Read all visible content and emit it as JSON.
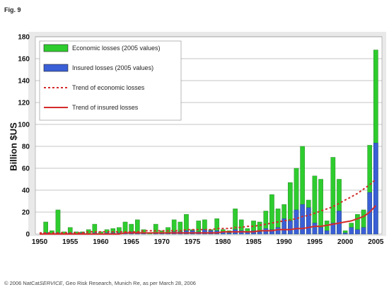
{
  "figure": {
    "label": "Fig. 9",
    "credit_prefix": "© 2006 NatCat",
    "credit_service": "SERVICE",
    "credit_suffix": ", Geo Risk Research, Munich Re, as per March 28, 2006"
  },
  "colors": {
    "economic": "#2ecc2e",
    "insured": "#3a5fd6",
    "trend_economic": "#d42a2a",
    "trend_insured": "#d42a2a",
    "plot_bg": "#ffffff",
    "outer_bg": "#e9e9e9"
  },
  "chart_data": {
    "type": "bar",
    "title": "",
    "xlabel": "",
    "ylabel": "Billion $US",
    "ylim": [
      0,
      180
    ],
    "yticks": [
      0,
      20,
      40,
      60,
      80,
      100,
      120,
      140,
      160,
      180
    ],
    "xticks": [
      1950,
      1955,
      1960,
      1965,
      1970,
      1975,
      1980,
      1985,
      1990,
      1995,
      2000,
      2005
    ],
    "grid": true,
    "legend_position": "top-left",
    "x": [
      1950,
      1951,
      1952,
      1953,
      1954,
      1955,
      1956,
      1957,
      1958,
      1959,
      1960,
      1961,
      1962,
      1963,
      1964,
      1965,
      1966,
      1967,
      1968,
      1969,
      1970,
      1971,
      1972,
      1973,
      1974,
      1975,
      1976,
      1977,
      1978,
      1979,
      1980,
      1981,
      1982,
      1983,
      1984,
      1985,
      1986,
      1987,
      1988,
      1989,
      1990,
      1991,
      1992,
      1993,
      1994,
      1995,
      1996,
      1997,
      1998,
      1999,
      2000,
      2001,
      2002,
      2003,
      2004,
      2005
    ],
    "series": [
      {
        "name": "Economic losses (2005 values)",
        "values": [
          0,
          11,
          3,
          22,
          2,
          6,
          2,
          2,
          4,
          9,
          2,
          4,
          5,
          6,
          11,
          9,
          13,
          4,
          1,
          9,
          3,
          6,
          13,
          11,
          18,
          4,
          12,
          13,
          4,
          14,
          4,
          3,
          23,
          13,
          5,
          12,
          11,
          21,
          36,
          23,
          27,
          47,
          60,
          80,
          31,
          53,
          50,
          12,
          70,
          50,
          3,
          10,
          18,
          22,
          81,
          168
        ]
      },
      {
        "name": "Insured losses (2005 values)",
        "values": [
          0,
          1,
          0,
          1,
          0,
          1,
          0,
          1,
          0,
          1,
          0,
          1,
          1,
          1,
          1,
          2,
          1,
          1,
          0,
          1,
          1,
          1,
          2,
          2,
          3,
          3,
          2,
          4,
          3,
          3,
          2,
          1,
          4,
          3,
          2,
          3,
          2,
          5,
          4,
          6,
          14,
          12,
          22,
          27,
          24,
          10,
          6,
          3,
          10,
          21,
          1,
          6,
          4,
          6,
          38,
          83
        ]
      },
      {
        "name": "Trend of economic losses",
        "values": [
          1,
          1,
          1,
          1,
          1,
          1,
          1,
          1,
          2,
          2,
          2,
          2,
          2,
          2,
          2,
          2,
          2,
          3,
          3,
          3,
          3,
          3,
          3,
          3,
          4,
          4,
          4,
          4,
          4,
          5,
          5,
          5,
          6,
          6,
          7,
          7,
          8,
          9,
          10,
          11,
          12,
          13,
          14,
          16,
          17,
          19,
          21,
          23,
          25,
          28,
          31,
          34,
          37,
          41,
          45,
          50
        ]
      },
      {
        "name": "Trend of insured losses",
        "values": [
          0,
          0,
          0,
          0,
          0,
          0,
          0,
          0,
          0,
          0,
          0,
          0,
          0,
          0,
          1,
          1,
          1,
          1,
          1,
          1,
          1,
          1,
          1,
          1,
          1,
          1,
          1,
          1,
          1,
          1,
          2,
          2,
          2,
          2,
          2,
          2,
          3,
          3,
          3,
          4,
          4,
          4,
          5,
          5,
          6,
          7,
          7,
          8,
          9,
          10,
          11,
          12,
          14,
          16,
          20,
          26
        ]
      }
    ]
  }
}
